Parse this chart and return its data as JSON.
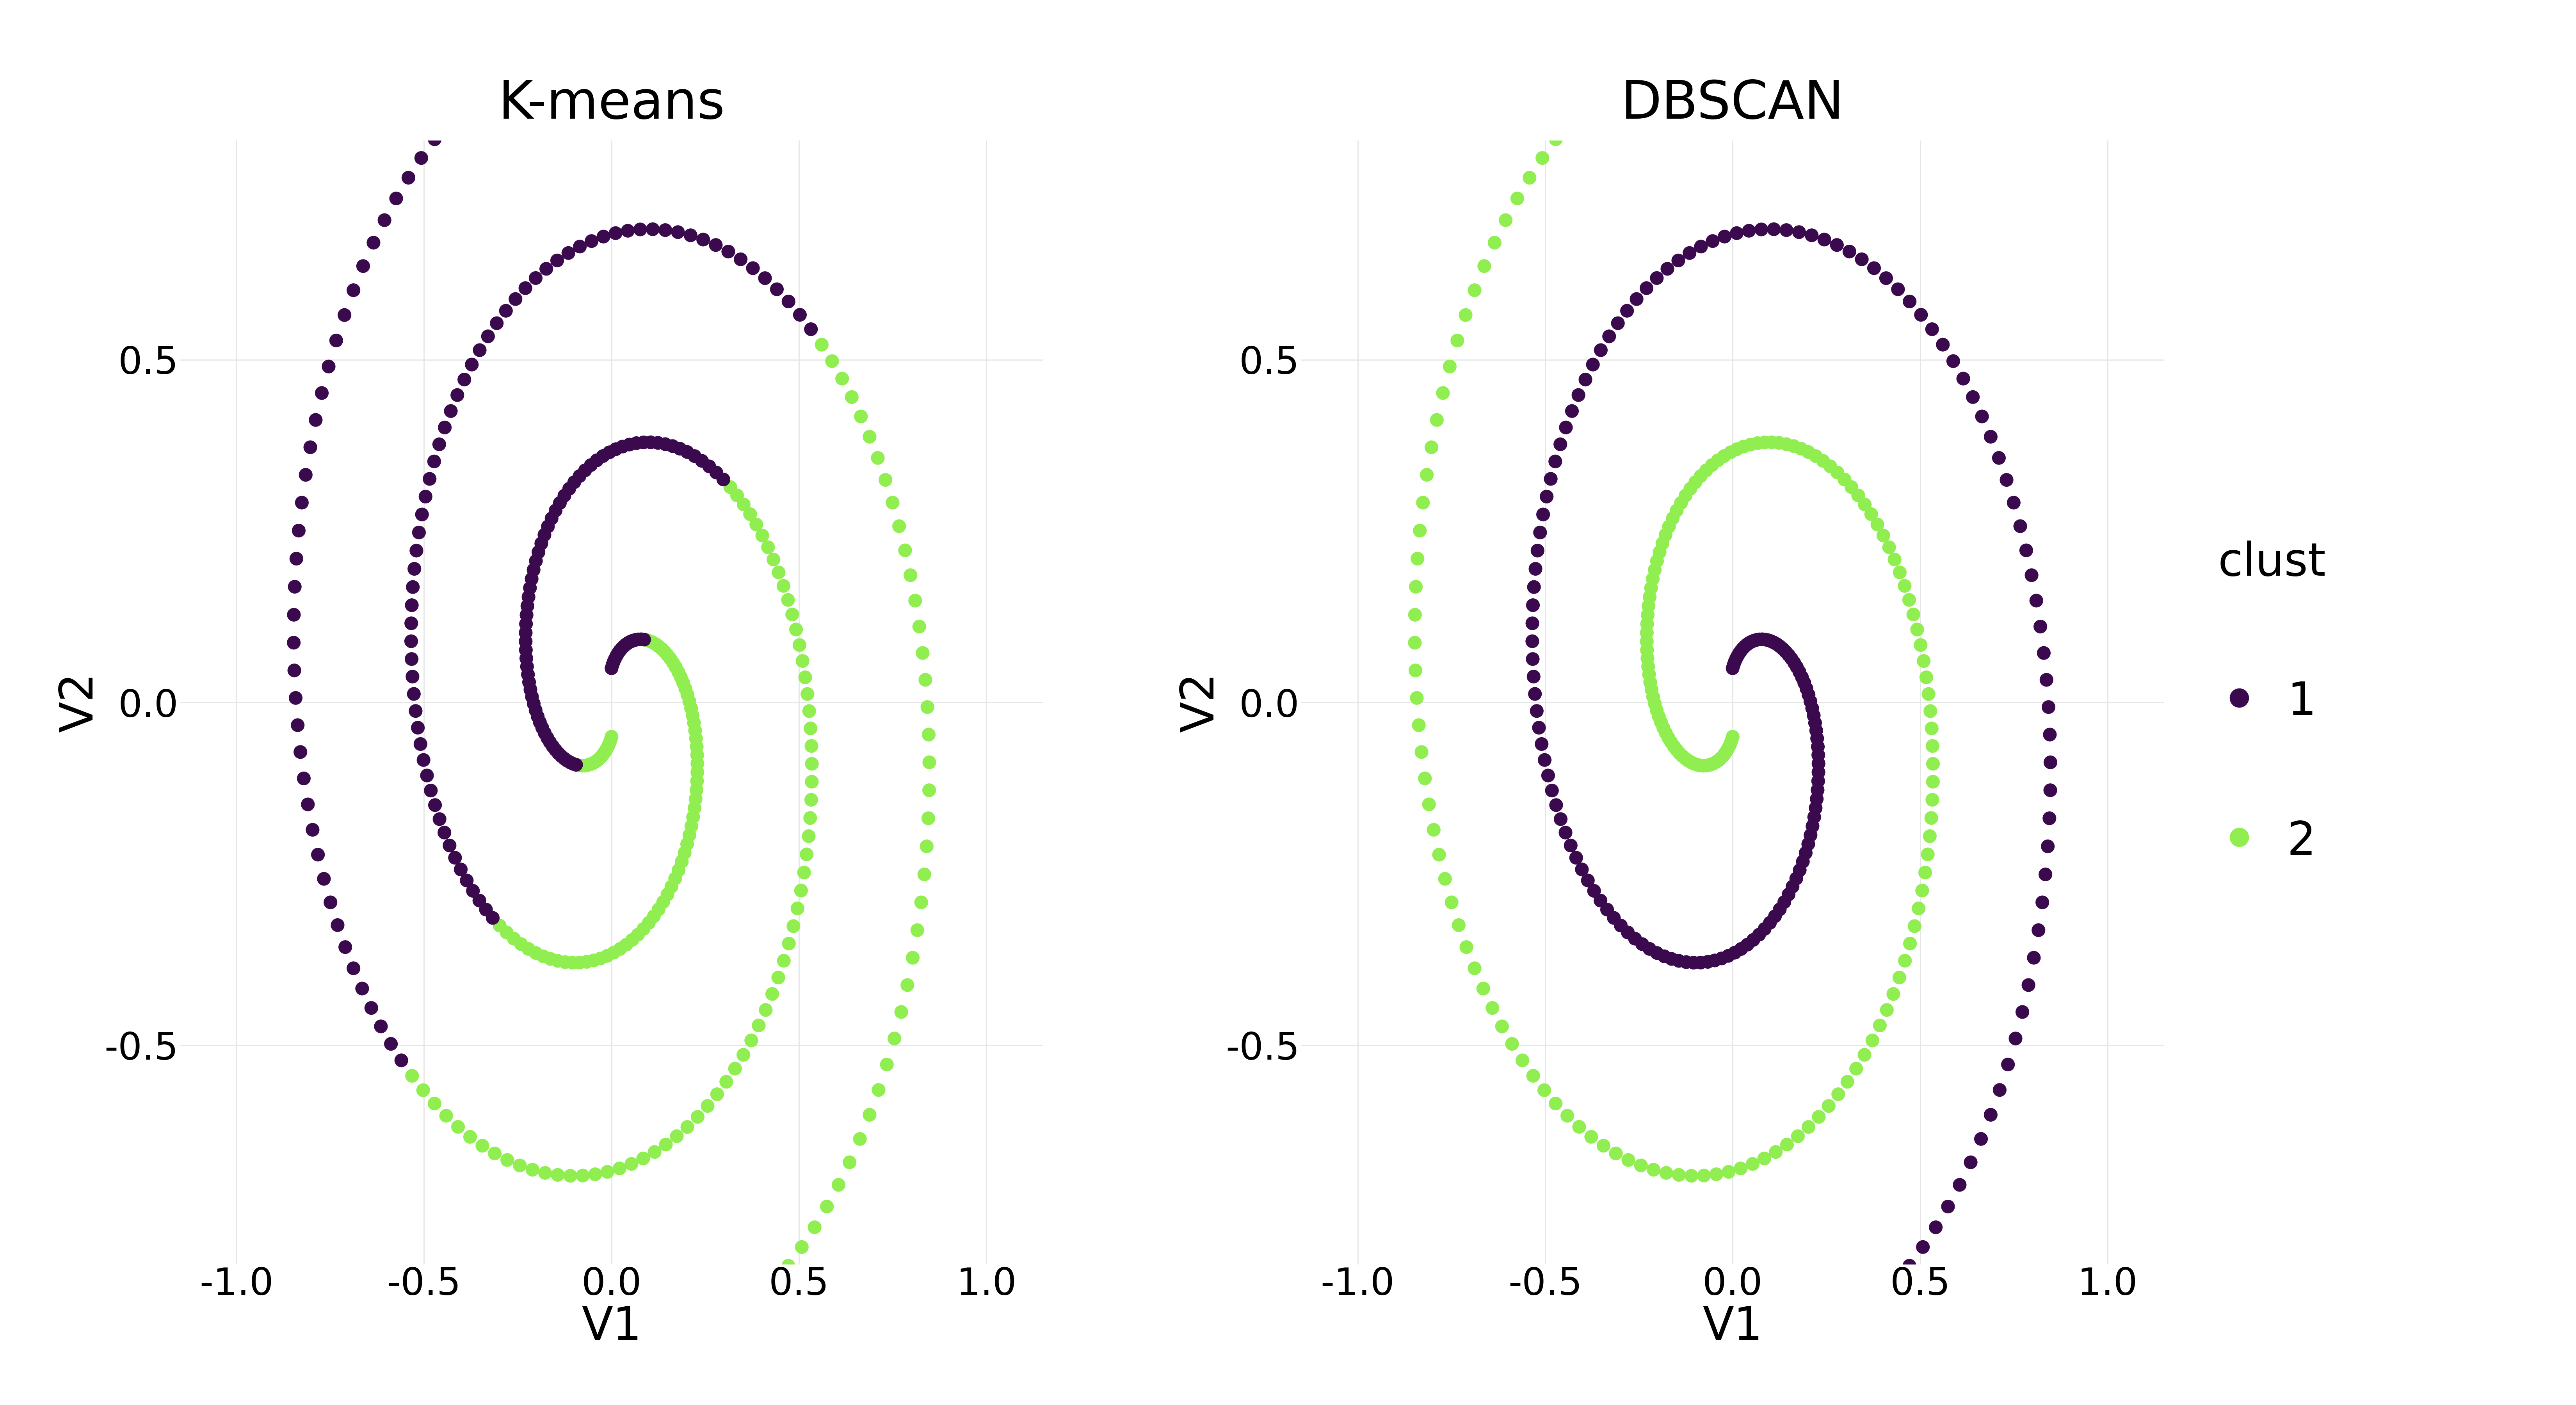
{
  "title_left": "K-means",
  "title_right": "DBSCAN",
  "xlabel": "V1",
  "ylabel": "V2",
  "color_cluster1": "#3B0A4E",
  "color_cluster2": "#90EE50",
  "legend_title": "clust",
  "xlim": [
    -1.15,
    1.15
  ],
  "ylim": [
    -0.82,
    0.82
  ],
  "xticks": [
    -1.0,
    -0.5,
    0.0,
    0.5,
    1.0
  ],
  "yticks": [
    -0.5,
    0.0,
    0.5
  ],
  "n_points": 200,
  "marker_size": 80,
  "background_color": "#FFFFFF",
  "panel_background": "#FFFFFF",
  "grid_color": "#E5E5E5",
  "title_fontsize": 28,
  "label_fontsize": 24,
  "tick_fontsize": 20,
  "legend_fontsize": 24
}
